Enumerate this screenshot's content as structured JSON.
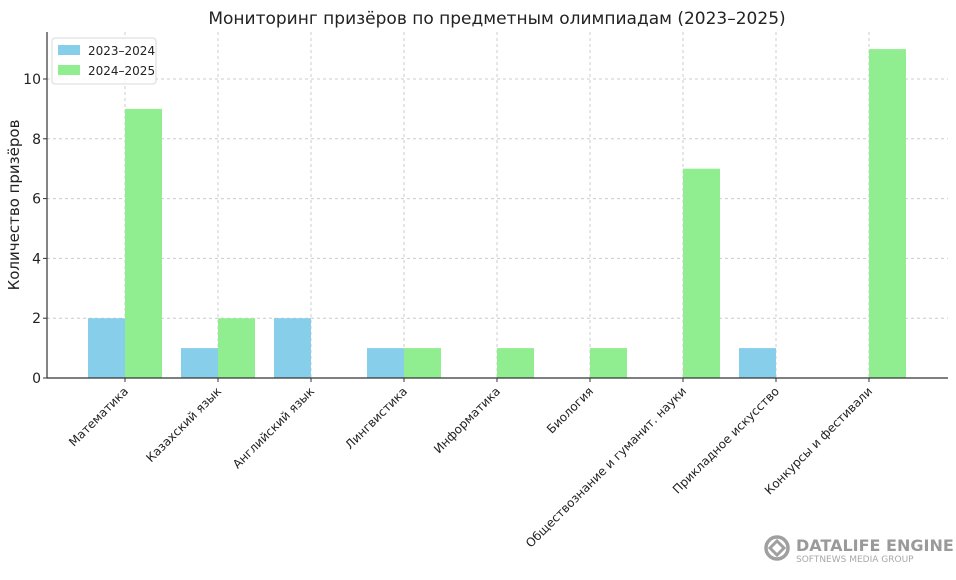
{
  "chart_data": {
    "type": "bar",
    "title": "Мониторинг призёров по предметным олимпиадам (2023–2025)",
    "xlabel": "",
    "ylabel": "Количество призёров",
    "categories": [
      "Математика",
      "Казахский язык",
      "Английский язык",
      "Лингвистика",
      "Информатика",
      "Биология",
      "Обществознание и гуманит. науки",
      "Прикладное искусство",
      "Конкурсы и фестивали"
    ],
    "series": [
      {
        "name": "2023–2024",
        "color": "#87CEEB",
        "values": [
          2,
          1,
          2,
          1,
          0,
          0,
          0,
          1,
          0
        ]
      },
      {
        "name": "2024–2025",
        "color": "#90EE90",
        "values": [
          9,
          2,
          0,
          1,
          1,
          1,
          7,
          0,
          11
        ]
      }
    ],
    "ylim": [
      0,
      11.55
    ],
    "yticks": [
      0,
      2,
      4,
      6,
      8,
      10
    ],
    "grid": true,
    "legend_position": "upper left"
  },
  "watermark": {
    "title": "DATALIFE ENGINE",
    "subtitle": "SOFTNEWS MEDIA GROUP"
  }
}
